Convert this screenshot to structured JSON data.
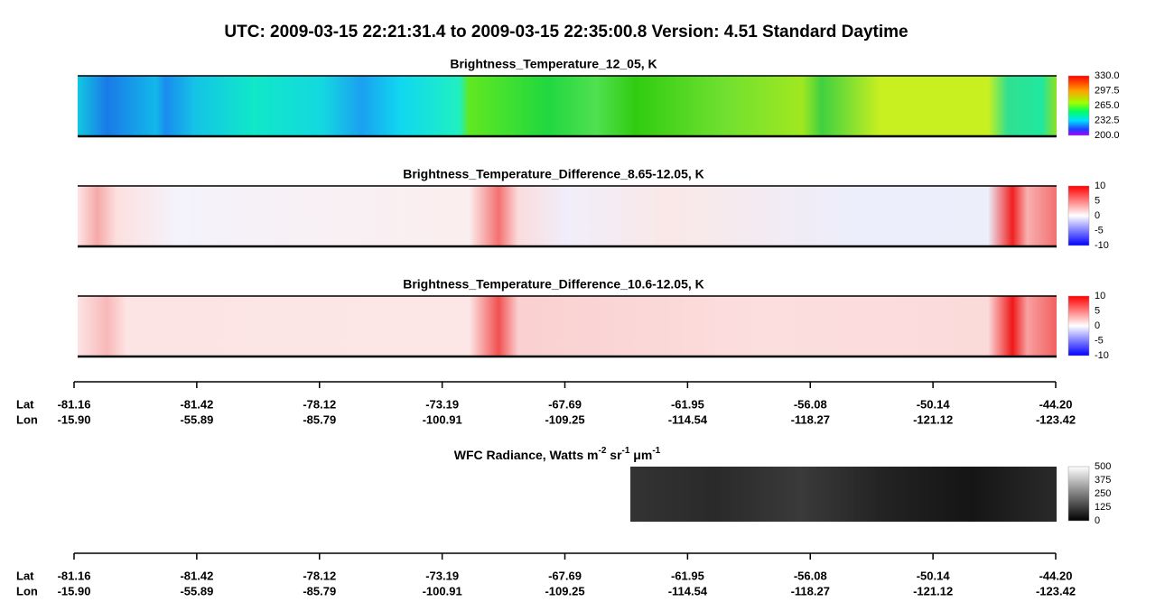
{
  "title": "UTC:  2009-03-15   22:21:31.4  to  2009-03-15   22:35:00.8    Version: 4.51  Standard Daytime",
  "panels": [
    {
      "title": "Brightness_Temperature_12_05, K",
      "colorbar_ticks": [
        "330.0",
        "297.5",
        "265.0",
        "232.5",
        "200.0"
      ]
    },
    {
      "title": "Brightness_Temperature_Difference_8.65-12.05, K",
      "colorbar_ticks": [
        "10",
        "5",
        "0",
        "-5",
        "-10"
      ]
    },
    {
      "title": "Brightness_Temperature_Difference_10.6-12.05, K",
      "colorbar_ticks": [
        "10",
        "5",
        "0",
        "-5",
        "-10"
      ]
    }
  ],
  "wfc": {
    "title_parts": [
      {
        "text": "WFC Radiance, Watts m"
      },
      {
        "text": "-2",
        "sup": true
      },
      {
        "text": " sr"
      },
      {
        "text": "-1",
        "sup": true
      },
      {
        "text": " μm"
      },
      {
        "text": "-1",
        "sup": true
      }
    ],
    "colorbar_ticks": [
      "500",
      "375",
      "250",
      "125",
      "0"
    ]
  },
  "axes": [
    {
      "lat_label": "Lat",
      "lon_label": "Lon",
      "lat": [
        "-81.16",
        "-81.42",
        "-78.12",
        "-73.19",
        "-67.69",
        "-61.95",
        "-56.08",
        "-50.14",
        "-44.20"
      ],
      "lon": [
        "-15.90",
        "-55.89",
        "-85.79",
        "-100.91",
        "-109.25",
        "-114.54",
        "-118.27",
        "-121.12",
        "-123.42"
      ]
    },
    {
      "lat_label": "Lat",
      "lon_label": "Lon",
      "lat": [
        "-81.16",
        "-81.42",
        "-78.12",
        "-73.19",
        "-67.69",
        "-61.95",
        "-56.08",
        "-50.14",
        "-44.20"
      ],
      "lon": [
        "-15.90",
        "-55.89",
        "-85.79",
        "-100.91",
        "-109.25",
        "-114.54",
        "-118.27",
        "-121.12",
        "-123.42"
      ]
    }
  ]
}
